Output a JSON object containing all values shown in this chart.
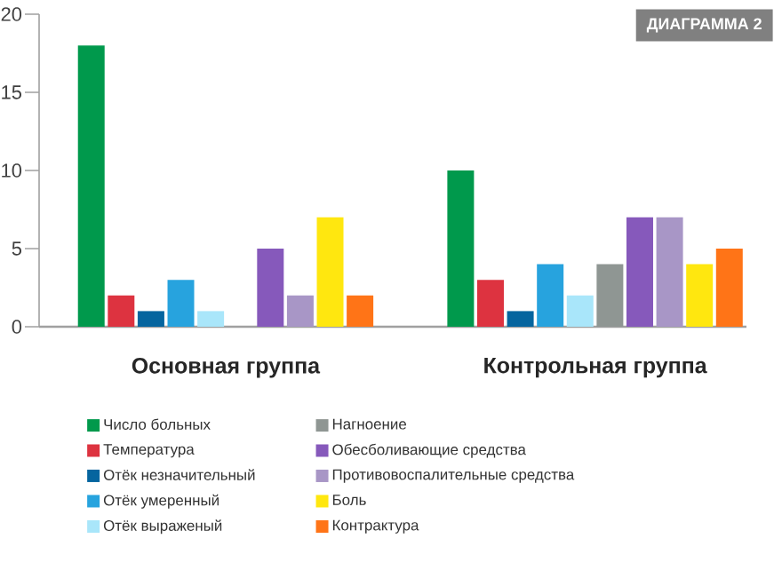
{
  "chart_data": {
    "type": "bar",
    "title": "ДИАГРАММА 2",
    "categories": [
      "Основная группа",
      "Контрольная группа"
    ],
    "series": [
      {
        "name": "Число больных",
        "color": "#00994c",
        "values": [
          18,
          10
        ]
      },
      {
        "name": "Температура",
        "color": "#dd3340",
        "values": [
          2,
          3
        ]
      },
      {
        "name": "Отёк незначительный",
        "color": "#05659f",
        "values": [
          1,
          1
        ]
      },
      {
        "name": "Отёк умеренный",
        "color": "#27a3de",
        "values": [
          3,
          4
        ]
      },
      {
        "name": "Отёк выраженый",
        "color": "#a9e6fa",
        "values": [
          1,
          2
        ]
      },
      {
        "name": "Нагноение",
        "color": "#8f9693",
        "values": [
          0,
          4
        ]
      },
      {
        "name": "Обесболивающие средства",
        "color": "#8659bb",
        "values": [
          5,
          7
        ]
      },
      {
        "name": "Противовоспалительные средства",
        "color": "#a896c6",
        "values": [
          2,
          7
        ]
      },
      {
        "name": "Боль",
        "color": "#ffe70f",
        "values": [
          7,
          4
        ]
      },
      {
        "name": "Контрактура",
        "color": "#ff7417",
        "values": [
          2,
          5
        ]
      }
    ],
    "ylim": [
      0,
      20
    ],
    "yticks": [
      0,
      5,
      10,
      15,
      20
    ],
    "legend": "bottom"
  }
}
